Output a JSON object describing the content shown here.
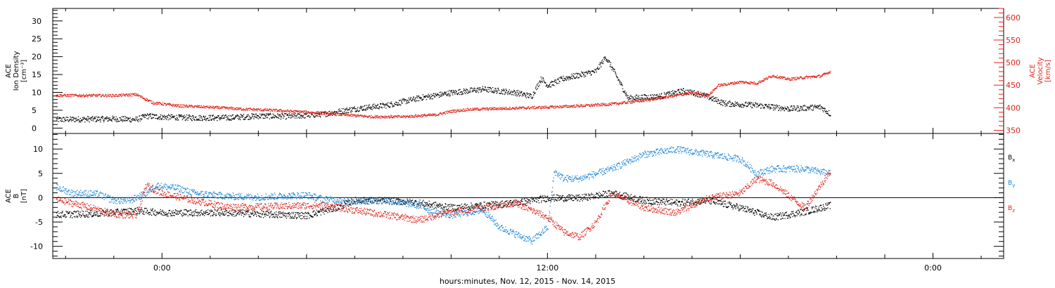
{
  "chart_data": {
    "type": "scatter",
    "xlabel": "hours:minutes, Nov. 12, 2015 - Nov. 14, 2015",
    "x_ticks": [
      "0:00",
      "12:00",
      "0:00"
    ],
    "x_hours_range": [
      -3.4,
      26.2
    ],
    "colors": {
      "density": "#000000",
      "velocity": "#e0251b",
      "bx": "#000000",
      "by": "#1e88d8",
      "bz": "#e0251b"
    },
    "panels": [
      {
        "id": "plasma",
        "left_label": [
          "ACE",
          "Ion Density",
          "[cm⁻³]"
        ],
        "right_label": [
          "ACE",
          "Velocity",
          "[km/s]"
        ],
        "left_ylim": [
          -1.5,
          33.5
        ],
        "left_ticks": [
          0,
          5,
          10,
          15,
          20,
          25,
          30
        ],
        "right_ylim": [
          343,
          620
        ],
        "right_ticks": [
          350,
          400,
          450,
          500,
          550,
          600
        ],
        "series": [
          {
            "key": "density",
            "axis": "left",
            "color": "#000000",
            "points": [
              [
                -3.3,
                2.5
              ],
              [
                -2.5,
                2.6
              ],
              [
                -1.5,
                2.7
              ],
              [
                -0.8,
                2.5
              ],
              [
                -0.5,
                3.5
              ],
              [
                0,
                3.2
              ],
              [
                1,
                3
              ],
              [
                2,
                3
              ],
              [
                3,
                3.5
              ],
              [
                4,
                3.4
              ],
              [
                5,
                4
              ],
              [
                6,
                5.5
              ],
              [
                7,
                6.5
              ],
              [
                8,
                8.5
              ],
              [
                9,
                10
              ],
              [
                10,
                11
              ],
              [
                11,
                10
              ],
              [
                11.5,
                9
              ],
              [
                11.8,
                14
              ],
              [
                12,
                12
              ],
              [
                12.5,
                14
              ],
              [
                13,
                15
              ],
              [
                13.5,
                16
              ],
              [
                13.8,
                20
              ],
              [
                14,
                17
              ],
              [
                14.5,
                8.5
              ],
              [
                15.5,
                9
              ],
              [
                16.2,
                10.5
              ],
              [
                16.8,
                9.5
              ],
              [
                17.5,
                7
              ],
              [
                18.5,
                6.5
              ],
              [
                19.5,
                5.5
              ],
              [
                20.5,
                6
              ],
              [
                20.8,
                4
              ]
            ]
          },
          {
            "key": "velocity",
            "axis": "right",
            "color": "#e0251b",
            "points": [
              [
                -3.3,
                428
              ],
              [
                -2.5,
                428
              ],
              [
                -1.5,
                428
              ],
              [
                -0.8,
                430
              ],
              [
                -0.3,
                412
              ],
              [
                0.5,
                405
              ],
              [
                1.5,
                402
              ],
              [
                2.5,
                398
              ],
              [
                3.5,
                395
              ],
              [
                4.5,
                391
              ],
              [
                5.5,
                386
              ],
              [
                6.5,
                381
              ],
              [
                7.5,
                381
              ],
              [
                8.5,
                385
              ],
              [
                9,
                393
              ],
              [
                9.5,
                397
              ],
              [
                10,
                398
              ],
              [
                11,
                400
              ],
              [
                12,
                402
              ],
              [
                13,
                405
              ],
              [
                14,
                409
              ],
              [
                15,
                417
              ],
              [
                16,
                428
              ],
              [
                16.5,
                434
              ],
              [
                17,
                428
              ],
              [
                17.3,
                450
              ],
              [
                18,
                458
              ],
              [
                18.5,
                455
              ],
              [
                19,
                472
              ],
              [
                19.5,
                464
              ],
              [
                20,
                468
              ],
              [
                20.5,
                471
              ],
              [
                20.8,
                481
              ]
            ]
          }
        ]
      },
      {
        "id": "imf",
        "left_label": [
          "ACE",
          "B",
          "[nT]"
        ],
        "ylim": [
          -12.5,
          13.2
        ],
        "ticks": [
          -10,
          -5,
          0,
          5,
          10
        ],
        "zero_line": true,
        "legend": [
          {
            "base": "B",
            "sub": "x",
            "color": "#000000"
          },
          {
            "base": "B",
            "sub": "y",
            "color": "#1e88d8"
          },
          {
            "base": "B",
            "sub": "z",
            "color": "#e0251b"
          }
        ],
        "series": [
          {
            "key": "bx",
            "color": "#000000",
            "points": [
              [
                -3.3,
                -3.4
              ],
              [
                -2,
                -3.2
              ],
              [
                -0.8,
                -2.6
              ],
              [
                0,
                -3
              ],
              [
                2,
                -3
              ],
              [
                3.5,
                -3.4
              ],
              [
                4.5,
                -3.6
              ],
              [
                5.5,
                -1.8
              ],
              [
                6,
                -0.5
              ],
              [
                7,
                -0.5
              ],
              [
                8,
                -1
              ],
              [
                9,
                -2
              ],
              [
                10,
                -1.5
              ],
              [
                11,
                -1
              ],
              [
                12,
                0
              ],
              [
                13,
                0
              ],
              [
                14,
                1
              ],
              [
                15,
                -0.5
              ],
              [
                16,
                -1
              ],
              [
                17,
                -0.5
              ],
              [
                18,
                -2
              ],
              [
                19,
                -4
              ],
              [
                20,
                -2.8
              ],
              [
                20.8,
                -1.5
              ]
            ]
          },
          {
            "key": "by",
            "color": "#1e88d8",
            "points": [
              [
                -3.3,
                2.2
              ],
              [
                -2.8,
                1
              ],
              [
                -2.5,
                1
              ],
              [
                -2,
                0.8
              ],
              [
                -1.5,
                -0.5
              ],
              [
                -1,
                -0.5
              ],
              [
                -0.5,
                1
              ],
              [
                -0.2,
                2.6
              ],
              [
                0.5,
                2
              ],
              [
                1,
                1
              ],
              [
                2,
                0.4
              ],
              [
                3,
                0.2
              ],
              [
                4,
                0.5
              ],
              [
                4.5,
                0.6
              ],
              [
                5,
                -0.2
              ],
              [
                6,
                -0.6
              ],
              [
                7,
                -0.5
              ],
              [
                8,
                -1.5
              ],
              [
                8.5,
                -3
              ],
              [
                9,
                -3.5
              ],
              [
                10,
                -2.5
              ],
              [
                10.5,
                -6
              ],
              [
                11.5,
                -8.8
              ],
              [
                12,
                -6
              ],
              [
                12.2,
                5.5
              ],
              [
                12.5,
                4
              ],
              [
                13,
                4
              ],
              [
                14,
                6
              ],
              [
                15,
                9
              ],
              [
                16,
                10
              ],
              [
                17,
                9
              ],
              [
                18,
                8
              ],
              [
                18.5,
                5
              ],
              [
                19,
                6
              ],
              [
                20,
                6
              ],
              [
                20.8,
                5
              ]
            ]
          },
          {
            "key": "bz",
            "color": "#e0251b",
            "points": [
              [
                -3.3,
                -0.3
              ],
              [
                -2.5,
                -1.5
              ],
              [
                -1.5,
                -3.3
              ],
              [
                -0.8,
                -3.6
              ],
              [
                -0.5,
                2.6
              ],
              [
                0,
                1
              ],
              [
                1,
                -0.5
              ],
              [
                2,
                -1.8
              ],
              [
                3,
                -1.8
              ],
              [
                4,
                -1.6
              ],
              [
                5,
                -1.5
              ],
              [
                6,
                -2.5
              ],
              [
                7,
                -3.5
              ],
              [
                8,
                -4.5
              ],
              [
                9,
                -2.8
              ],
              [
                10,
                -2
              ],
              [
                11,
                -1
              ],
              [
                12,
                -4
              ],
              [
                12.5,
                -7
              ],
              [
                13,
                -8
              ],
              [
                13.5,
                -5
              ],
              [
                14,
                1
              ],
              [
                15,
                -2
              ],
              [
                16,
                -3
              ],
              [
                17,
                0
              ],
              [
                18,
                1
              ],
              [
                18.5,
                4
              ],
              [
                19,
                3
              ],
              [
                20,
                -2
              ],
              [
                20.8,
                5.5
              ]
            ]
          }
        ]
      }
    ]
  }
}
